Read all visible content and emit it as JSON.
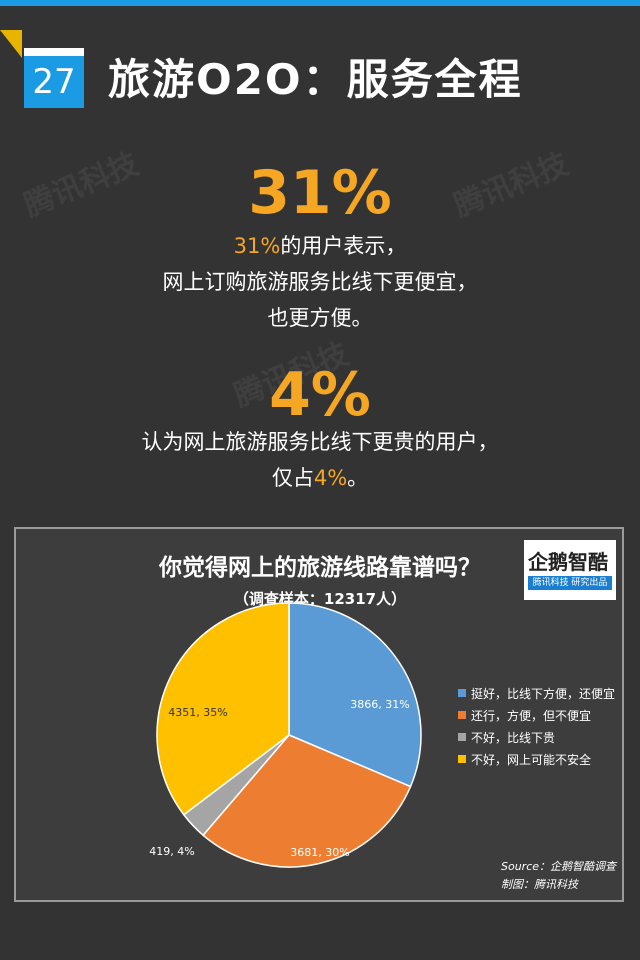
{
  "header": {
    "number": "27",
    "title": "旅游O2O：服务全程"
  },
  "watermark": "腾讯科技",
  "stat1": {
    "value": "31%",
    "line1_highlight": "31%",
    "line1_rest": "的用户表示，",
    "line2": "网上订购旅游服务比线下更便宜，",
    "line3": "也更方便。"
  },
  "stat2": {
    "value": "4%",
    "line1": "认为网上旅游服务比线下更贵的用户，",
    "line2_pre": "仅占",
    "line2_highlight": "4%",
    "line2_post": "。"
  },
  "logo": {
    "top": "企鹅智酷",
    "bar": "腾讯科技 研究出品"
  },
  "source": {
    "line1": "Source：企鹅智酷调查",
    "line2": "制图：腾讯科技"
  },
  "colors": {
    "accent": "#f5a623",
    "blue": "#1a9be3"
  },
  "chart_data": {
    "type": "pie",
    "title": "你觉得网上的旅游线路靠谱吗？",
    "subtitle": "（调查样本：12317人）",
    "legend_position": "right",
    "slices": [
      {
        "label": "挺好，比线下方便，还便宜",
        "value": 3866,
        "percent": 31,
        "data_label": "3866, 31%",
        "color": "#5b9bd5"
      },
      {
        "label": "还行，方便，但不便宜",
        "value": 3681,
        "percent": 30,
        "data_label": "3681, 30%",
        "color": "#ed7d31"
      },
      {
        "label": "不好，比线下贵",
        "value": 419,
        "percent": 4,
        "data_label": "419, 4%",
        "color": "#a5a5a5"
      },
      {
        "label": "不好，网上可能不安全",
        "value": 4351,
        "percent": 35,
        "data_label": "4351, 35%",
        "color": "#ffc000"
      }
    ]
  }
}
